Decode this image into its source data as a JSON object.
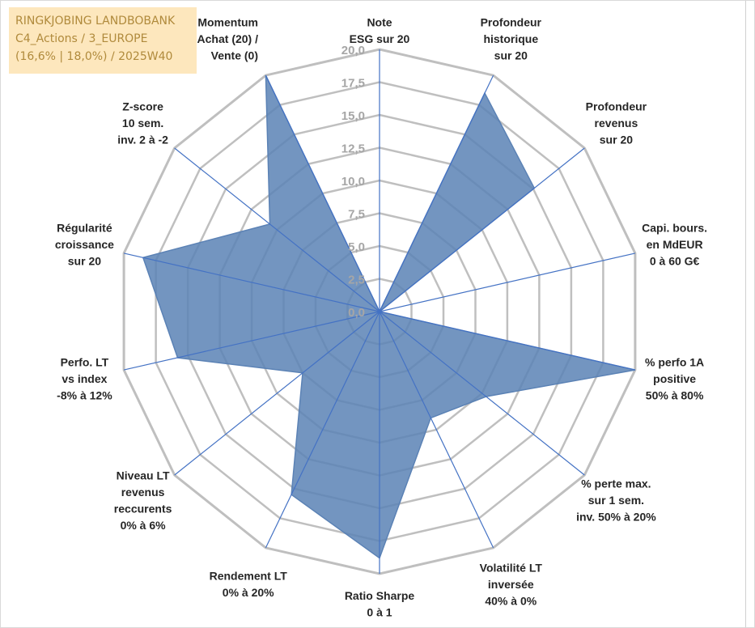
{
  "header": {
    "line1": "RINGKJOBING LANDBOBANK",
    "line2": "C4_Actions / 3_EUROPE",
    "line3": "(16,6% | 18,0%) / 2025W40"
  },
  "colors": {
    "fill": "#5b82b5",
    "stroke": "#4472c4",
    "grid": "#bfbfbf",
    "header_bg": "#fde7bd",
    "header_text": "#b08a3c"
  },
  "chart_data": {
    "type": "radar",
    "rmin": 0,
    "rmax": 20,
    "ticks": [
      "0,0",
      "2,5",
      "5,0",
      "7,5",
      "10,0",
      "12,5",
      "15,0",
      "17,5",
      "20,0"
    ],
    "axes": [
      {
        "lines": [
          "Note",
          "ESG sur 20"
        ]
      },
      {
        "lines": [
          "Profondeur",
          "historique",
          "sur 20"
        ]
      },
      {
        "lines": [
          "Profondeur",
          "revenus",
          "sur 20"
        ]
      },
      {
        "lines": [
          "Capi. bours.",
          "en MdEUR",
          "0 à 60 G€"
        ]
      },
      {
        "lines": [
          "% perfo 1A",
          "positive",
          "50% à 80%"
        ]
      },
      {
        "lines": [
          "% perte max.",
          "sur 1 sem.",
          "inv. 50% à 20%"
        ]
      },
      {
        "lines": [
          "Volatilité LT",
          "inversée",
          "40% à 0%"
        ]
      },
      {
        "lines": [
          "Ratio Sharpe",
          "0 à 1"
        ]
      },
      {
        "lines": [
          "Rendement LT",
          "0% à 20%"
        ]
      },
      {
        "lines": [
          "Niveau LT",
          "revenus",
          "reccurents",
          "0% à 6%"
        ]
      },
      {
        "lines": [
          "Perfo. LT",
          "vs index",
          "-8% à 12%"
        ]
      },
      {
        "lines": [
          "Régularité",
          "croissance",
          "sur 20"
        ]
      },
      {
        "lines": [
          "Z-score",
          "10 sem.",
          "inv. 2 à -2"
        ]
      },
      {
        "lines": [
          "Momentum",
          "Achat (20) /",
          "Vente (0)"
        ]
      }
    ],
    "series": [
      {
        "name": "RINGKJOBING LANDBOBANK",
        "values": [
          0,
          18.5,
          15.1,
          0,
          20,
          10.4,
          9.0,
          18.8,
          15.5,
          7.5,
          15.8,
          18.5,
          10.7,
          20
        ]
      }
    ]
  }
}
